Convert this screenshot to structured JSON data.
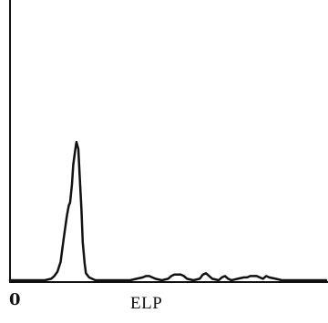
{
  "chart_data": {
    "type": "line",
    "title": "",
    "xlabel": "ELP",
    "ylabel": "",
    "x_ticks": [
      "0"
    ],
    "xlim": [
      0,
      100
    ],
    "ylim": [
      0,
      100
    ],
    "grid": false,
    "line_color": "#111111",
    "series": [
      {
        "x": [
          0,
          11,
          13,
          14,
          15,
          16,
          17,
          18,
          18.6,
          19,
          19.6,
          20,
          20.6,
          21,
          21.6,
          22,
          22.6,
          23,
          23.6,
          24,
          25,
          27,
          32,
          38,
          40,
          42,
          43,
          44,
          45,
          46,
          48,
          50,
          51,
          52,
          53,
          54,
          55,
          56,
          58,
          60,
          61,
          62,
          63,
          64,
          66,
          67,
          68,
          69,
          70,
          72,
          74,
          75,
          76,
          78,
          79,
          80,
          81,
          82,
          84,
          86,
          88,
          90,
          95,
          100
        ],
        "y": [
          0,
          0,
          1,
          3,
          6,
          13,
          30,
          46,
          53,
          55,
          68,
          82,
          92,
          98,
          93,
          76,
          50,
          27,
          12,
          5,
          2,
          0,
          0,
          0,
          1,
          2,
          3,
          3,
          2,
          1,
          0,
          1,
          3,
          4,
          4,
          4,
          3,
          1,
          0,
          1,
          4,
          5,
          3,
          1,
          0,
          2,
          3,
          1,
          0,
          1,
          2,
          2,
          3,
          3,
          2,
          1,
          3,
          2,
          1,
          0,
          0,
          0,
          0,
          0
        ]
      }
    ]
  }
}
